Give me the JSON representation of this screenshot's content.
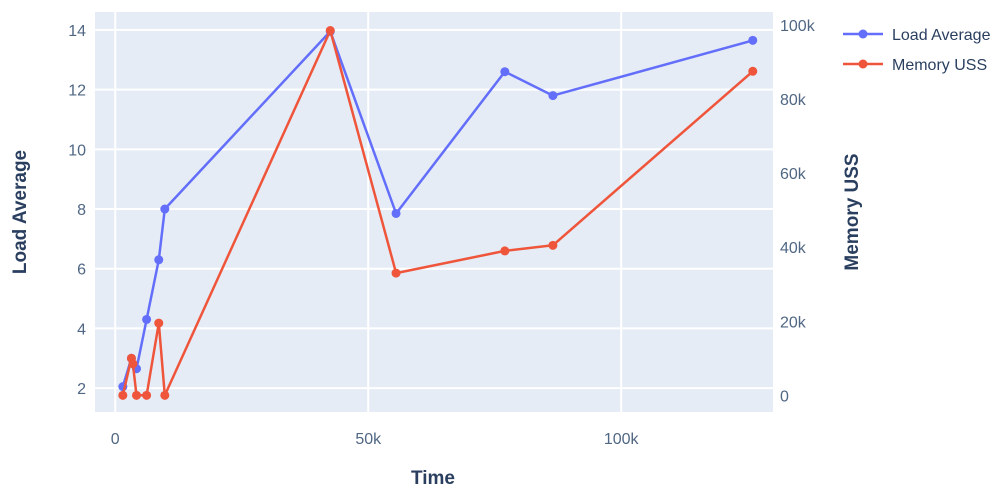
{
  "chart_data": {
    "type": "line",
    "xlabel": "Time",
    "ylabel_left": "Load Average",
    "ylabel_right": "Memory USS",
    "x_ticks": [
      0,
      50000,
      100000
    ],
    "x_tick_labels": [
      "0",
      "50k",
      "100k"
    ],
    "x_range": [
      -4000,
      130000
    ],
    "y_left_ticks": [
      2,
      4,
      6,
      8,
      10,
      12,
      14
    ],
    "y_left_tick_labels": [
      "2",
      "4",
      "6",
      "8",
      "10",
      "12",
      "14"
    ],
    "y_left_range": [
      1.2,
      14.6
    ],
    "y_right_ticks": [
      0,
      20000,
      40000,
      60000,
      80000,
      100000
    ],
    "y_right_tick_labels": [
      "0",
      "20k",
      "40k",
      "60k",
      "80k",
      "100k"
    ],
    "y_right_range": [
      -4500,
      103500
    ],
    "grid": true,
    "legend_position": "top-right",
    "series": [
      {
        "name": "Load Average",
        "axis": "left",
        "color": "#636efa",
        "x": [
          1500,
          3200,
          4200,
          6200,
          8600,
          9800,
          42500,
          55500,
          77000,
          86500,
          126000
        ],
        "y": [
          2.05,
          3.0,
          2.65,
          4.3,
          6.3,
          8.0,
          13.95,
          7.85,
          12.6,
          11.8,
          13.65
        ]
      },
      {
        "name": "Memory USS",
        "axis": "right",
        "color": "#ef553b",
        "x": [
          1500,
          3200,
          3500,
          4200,
          6200,
          8600,
          9800,
          42500,
          55500,
          77000,
          86500,
          126000
        ],
        "y": [
          0,
          10000,
          8500,
          0,
          0,
          19500,
          0,
          98500,
          33000,
          39000,
          40500,
          87500
        ]
      }
    ]
  }
}
